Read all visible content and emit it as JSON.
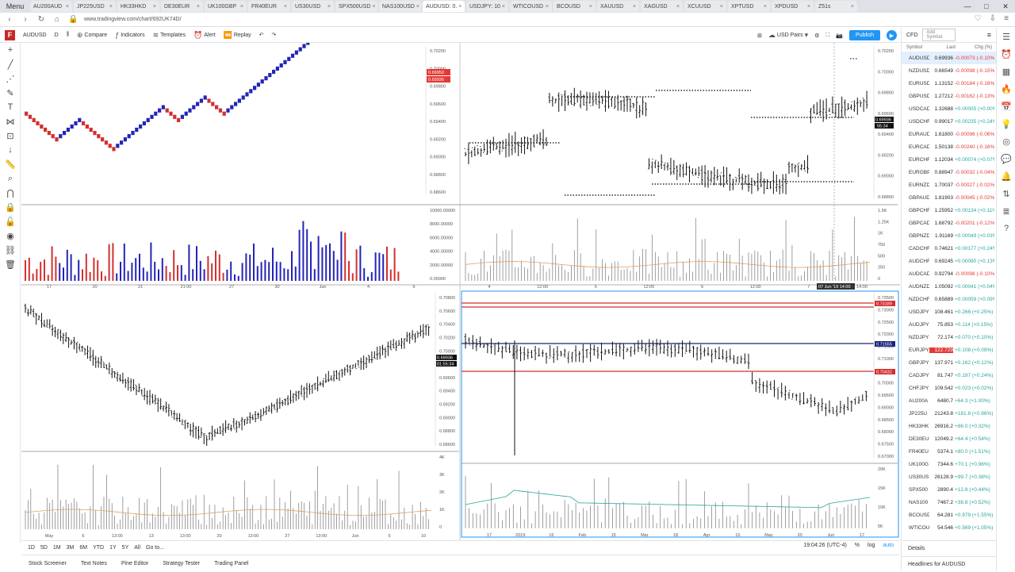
{
  "browser": {
    "menu_label": "Menu",
    "tabs": [
      {
        "label": "AU200AUD"
      },
      {
        "label": "JP225USD"
      },
      {
        "label": "HK33HKD"
      },
      {
        "label": "DE30EUR"
      },
      {
        "label": "UK100GBP"
      },
      {
        "label": "FR40EUR"
      },
      {
        "label": "US30USD"
      },
      {
        "label": "SPX500USD"
      },
      {
        "label": "NAS100USD"
      },
      {
        "label": "AUDUSD: 0.",
        "active": true
      },
      {
        "label": "USDJPY: 10"
      },
      {
        "label": "WTICOUSD"
      },
      {
        "label": "BCOUSD"
      },
      {
        "label": "XAUUSD"
      },
      {
        "label": "XAGUSD"
      },
      {
        "label": "XCUUSD"
      },
      {
        "label": "XPTUSD"
      },
      {
        "label": "XPDUSD"
      },
      {
        "label": "Z51s"
      }
    ],
    "url": "www.tradingview.com/chart/692UK74D/"
  },
  "toolbar": {
    "symbol": "AUDUSD",
    "interval": "D",
    "compare": "Compare",
    "indicators": "Indicators",
    "templates": "Templates",
    "alert": "Alert",
    "replay": "Replay",
    "currency": "USD Pairs",
    "publish": "Publish"
  },
  "panels": {
    "tl": {
      "scale": [
        "0.70200",
        "0.70000",
        "0.69800",
        "0.69600",
        "0.69400",
        "0.69200",
        "0.69000",
        "0.68800",
        "0.68600"
      ],
      "price_a": "0.69950",
      "price_b": "0.69936",
      "vol_scale": [
        "10000.00000",
        "8000.00000",
        "6000.00000",
        "4000.00000",
        "2000.00000",
        "0.00000"
      ],
      "times": [
        "17",
        "20",
        "21",
        "21:00",
        "27",
        "30",
        "Jun",
        "4",
        "6"
      ]
    },
    "tr": {
      "scale": [
        "0.70200",
        "0.70000",
        "0.69800",
        "0.69600",
        "0.69400",
        "0.69200",
        "0.69000",
        "0.68800"
      ],
      "price": "0.69936",
      "countdown": "55:34",
      "vol_scale": [
        "1.5K",
        "1.25K",
        "1K",
        "750",
        "500",
        "250",
        "0"
      ],
      "times": [
        "4",
        "12:00",
        "5",
        "12:00",
        "6",
        "12:00",
        "7",
        "14:00"
      ],
      "crosshair_time": "07 Jun '19"
    },
    "bl": {
      "scale": [
        "0.70800",
        "0.70600",
        "0.70400",
        "0.70200",
        "0.70000",
        "0.69800",
        "0.69600",
        "0.69400",
        "0.69200",
        "0.69000",
        "0.68800",
        "0.68600"
      ],
      "price": "0.69936",
      "countdown": "01:55:34",
      "vol_scale": [
        "4K",
        "3K",
        "2K",
        "1K",
        "0"
      ],
      "times": [
        "May",
        "6",
        "13:00",
        "13",
        "13:00",
        "20",
        "13:00",
        "27",
        "13:00",
        "Jun",
        "5",
        "10"
      ]
    },
    "br": {
      "scale": [
        "0.73500",
        "0.73000",
        "0.72500",
        "0.72000",
        "0.71500",
        "0.71000",
        "0.70500",
        "0.70000",
        "0.69500",
        "0.69000",
        "0.68500",
        "0.68000",
        "0.67500",
        "0.67000"
      ],
      "line_red_top": "0.73189",
      "line_blue": "0.71555",
      "line_red_mid": "0.70432",
      "vol_scale": [
        "20K",
        "15K",
        "10K",
        "5K"
      ],
      "times": [
        "17",
        "2019",
        "16",
        "Feb",
        "15",
        "Mar",
        "18",
        "Apr",
        "15",
        "May",
        "20",
        "Jun",
        "17"
      ]
    }
  },
  "rangebar": {
    "ranges": [
      "1D",
      "5D",
      "1M",
      "3M",
      "6M",
      "YTD",
      "1Y",
      "5Y",
      "All"
    ],
    "goto": "Go to...",
    "clock": "19:04:26 (UTC-4)",
    "pct": "%",
    "log": "log",
    "auto": "auto"
  },
  "bottom_tabs": [
    "Stock Screener",
    "Text Notes",
    "Pine Editor",
    "Strategy Tester",
    "Trading Panel"
  ],
  "watchlist": {
    "title": "CFD",
    "add": "Add Symbol",
    "cols": [
      "Symbol",
      "Last",
      "Chg (%)"
    ],
    "rows": [
      {
        "s": "AUDUSD",
        "l": "0.69936",
        "c": "-0.00073 (-0.10%)",
        "n": true,
        "sel": true
      },
      {
        "s": "NZDUSD",
        "l": "0.66549",
        "c": "-0.00098 (-0.15%)",
        "n": true
      },
      {
        "s": "EURUSD",
        "l": "1.13152",
        "c": "-0.00184 (-0.16%)",
        "n": true
      },
      {
        "s": "GBPUSD",
        "l": "1.27212",
        "c": "-0.00162 (-0.13%)",
        "n": true
      },
      {
        "s": "USDCAD",
        "l": "1.32688",
        "c": "+0.00005 (+0.00%)",
        "n": false
      },
      {
        "s": "USDCHF",
        "l": "0.99017",
        "c": "+0.00235 (+0.24%)",
        "n": false
      },
      {
        "s": "EURAUD",
        "l": "1.61800",
        "c": "-0.00096 (-0.06%)",
        "n": true
      },
      {
        "s": "EURCAD",
        "l": "1.50138",
        "c": "-0.00240 (-0.16%)",
        "n": true
      },
      {
        "s": "EURCHF",
        "l": "1.12034",
        "c": "+0.00074 (+0.07%)",
        "n": false
      },
      {
        "s": "EURGBP",
        "l": "0.88947",
        "c": "-0.00032 (-0.04%)",
        "n": true
      },
      {
        "s": "EURNZD",
        "l": "1.70037",
        "c": "-0.00027 (-0.02%)",
        "n": true
      },
      {
        "s": "GBPAUD",
        "l": "1.81903",
        "c": "-0.00045 (-0.02%)",
        "n": true
      },
      {
        "s": "GBPCHF",
        "l": "1.25952",
        "c": "+0.00134 (+0.11%)",
        "n": false
      },
      {
        "s": "GBPCAD",
        "l": "1.68792",
        "c": "-0.00201 (-0.12%)",
        "n": true
      },
      {
        "s": "GBPNZD",
        "l": "1.91169",
        "c": "+0.00049 (+0.03%)",
        "n": false
      },
      {
        "s": "CADCHF",
        "l": "0.74621",
        "c": "+0.00177 (+0.24%)",
        "n": false
      },
      {
        "s": "AUDCHF",
        "l": "0.69245",
        "c": "+0.00090 (+0.13%)",
        "n": false
      },
      {
        "s": "AUDCAD",
        "l": "0.92794",
        "c": "-0.00098 (-0.10%)",
        "n": true
      },
      {
        "s": "AUDNZD",
        "l": "1.05092",
        "c": "+0.00041 (+0.04%)",
        "n": false
      },
      {
        "s": "NZDCHF",
        "l": "0.65889",
        "c": "+0.00059 (+0.09%)",
        "n": false
      },
      {
        "s": "USDJPY",
        "l": "108.461",
        "c": "+0.266 (+0.25%)",
        "n": false
      },
      {
        "s": "AUDJPY",
        "l": "75.853",
        "c": "+0.114 (+0.15%)",
        "n": false
      },
      {
        "s": "NZDJPY",
        "l": "72.174",
        "c": "+0.070 (+0.10%)",
        "n": false
      },
      {
        "s": "EURJPY",
        "l": "122.729",
        "c": "+0.108 (+0.09%)",
        "n": false,
        "hl": true
      },
      {
        "s": "GBPJPY",
        "l": "137.971",
        "c": "+0.162 (+0.12%)",
        "n": false
      },
      {
        "s": "CADJPY",
        "l": "81.747",
        "c": "+0.197 (+0.24%)",
        "n": false
      },
      {
        "s": "CHFJPY",
        "l": "109.542",
        "c": "+0.023 (+0.02%)",
        "n": false
      },
      {
        "s": "AU200A",
        "l": "6480.7",
        "c": "+64.3 (+1.00%)",
        "n": false
      },
      {
        "s": "JP225U",
        "l": "21243.8",
        "c": "+181.8 (+0.86%)",
        "n": false
      },
      {
        "s": "HK33HK",
        "l": "26916.2",
        "c": "+86.0 (+0.32%)",
        "n": false
      },
      {
        "s": "DE30EU",
        "l": "12049.2",
        "c": "+64.4 (+0.54%)",
        "n": false
      },
      {
        "s": "FR40EU",
        "l": "5374.1",
        "c": "+80.0 (+1.51%)",
        "n": false
      },
      {
        "s": "UK100G",
        "l": "7344.6",
        "c": "+70.1 (+0.96%)",
        "n": false
      },
      {
        "s": "US30US",
        "l": "26128.9",
        "c": "+99.7 (+0.38%)",
        "n": false
      },
      {
        "s": "SPX500",
        "l": "2890.4",
        "c": "+12.8 (+0.44%)",
        "n": false
      },
      {
        "s": "NAS100",
        "l": "7467.2",
        "c": "+38.8 (+0.52%)",
        "n": false
      },
      {
        "s": "BCOUSD",
        "l": "64.281",
        "c": "+0.979 (+1.55%)",
        "n": false
      },
      {
        "s": "WTICOU",
        "l": "54.546",
        "c": "+0.569 (+1.05%)",
        "n": false
      }
    ],
    "details": "Details",
    "headlines": "Headlines for AUDUSD"
  },
  "colors": {
    "accent": "#2196f3",
    "up": "#2424b8",
    "down": "#d32f2f",
    "pos": "#26a69a",
    "neg": "#e53935"
  }
}
